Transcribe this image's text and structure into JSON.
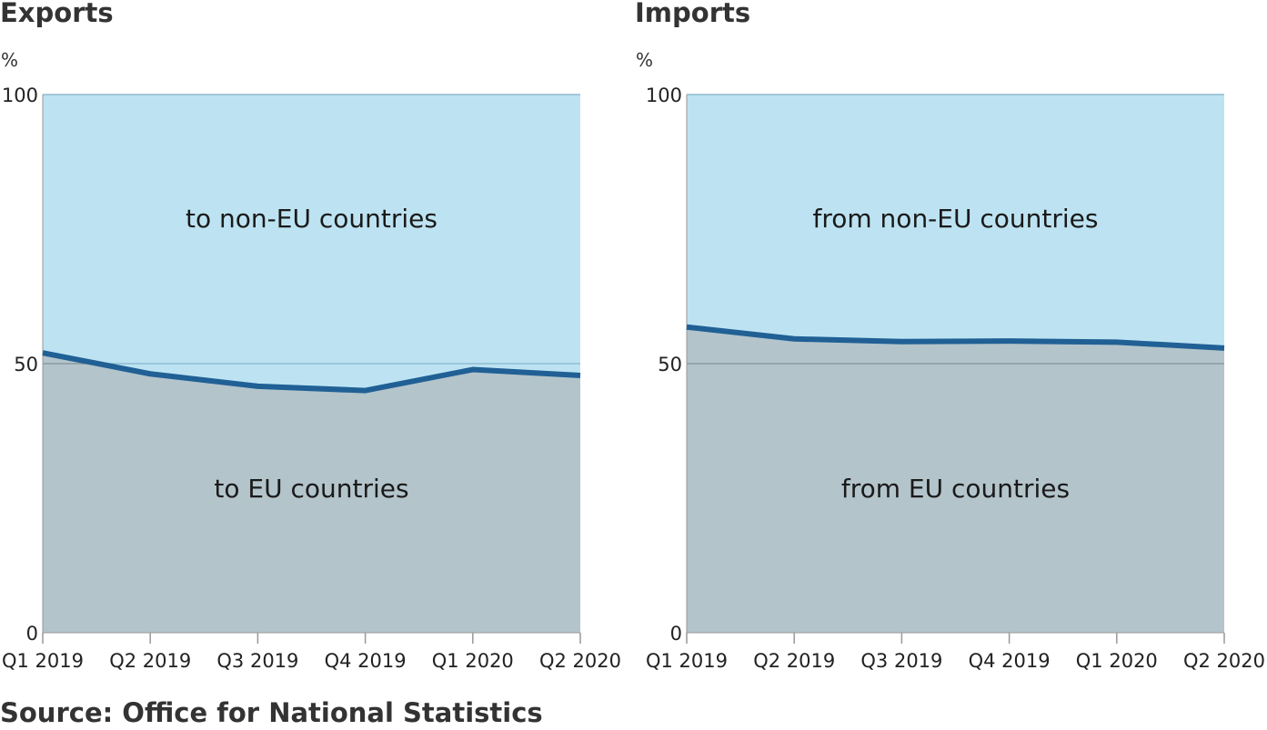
{
  "source": "Source: Office for National Statistics",
  "colors": {
    "upper_area": "#bde3f2",
    "lower_area": "#b3c4cb",
    "line": "#206095",
    "gridline_upper": "#8fbcd0",
    "gridline_lower": "#8a9ba2",
    "axis": "#999999"
  },
  "chart_data": [
    {
      "type": "area",
      "title": "Exports",
      "ylabel": "%",
      "ylim": [
        0,
        100
      ],
      "yticks": [
        0,
        50,
        100
      ],
      "categories": [
        "Q1 2019",
        "Q2 2019",
        "Q3 2019",
        "Q4 2019",
        "Q1 2020",
        "Q2 2020"
      ],
      "series": [
        {
          "name": "to EU countries",
          "values": [
            52.0,
            48.1,
            45.8,
            45.0,
            48.9,
            47.8
          ]
        },
        {
          "name": "to non-EU countries",
          "values": [
            48.0,
            51.9,
            54.2,
            55.0,
            51.1,
            52.2
          ]
        }
      ],
      "grid": true
    },
    {
      "type": "area",
      "title": "Imports",
      "ylabel": "%",
      "ylim": [
        0,
        100
      ],
      "yticks": [
        0,
        50,
        100
      ],
      "categories": [
        "Q1 2019",
        "Q2 2019",
        "Q3 2019",
        "Q4 2019",
        "Q1 2020",
        "Q2 2020"
      ],
      "series": [
        {
          "name": "from EU countries",
          "values": [
            56.8,
            54.6,
            54.1,
            54.2,
            54.0,
            52.9
          ]
        },
        {
          "name": "from non-EU countries",
          "values": [
            43.2,
            45.4,
            45.9,
            45.8,
            46.0,
            47.1
          ]
        }
      ],
      "grid": true
    }
  ]
}
